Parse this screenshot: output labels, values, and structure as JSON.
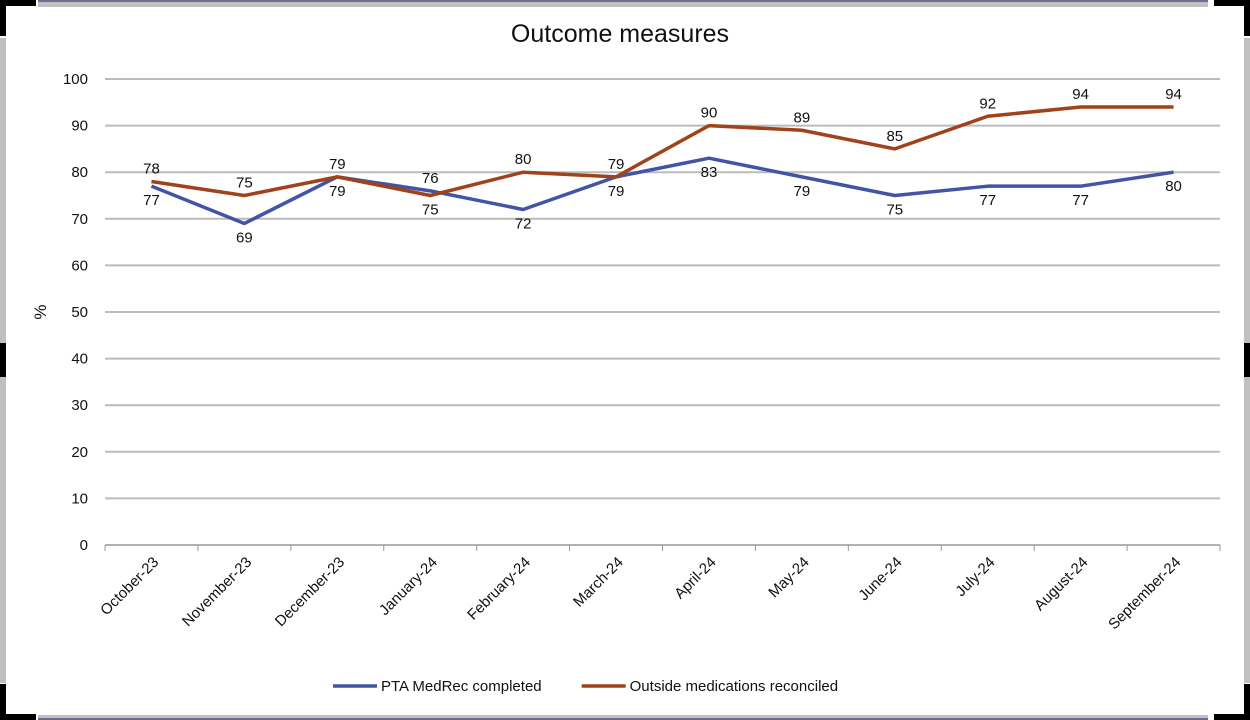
{
  "chart_data": {
    "type": "line",
    "title": "Outcome measures",
    "xlabel": "",
    "ylabel": "%",
    "ylim": [
      0,
      100
    ],
    "yticks": [
      0,
      10,
      20,
      30,
      40,
      50,
      60,
      70,
      80,
      90,
      100
    ],
    "grid": true,
    "legend_position": "bottom",
    "categories": [
      "October-23",
      "November-23",
      "December-23",
      "January-24",
      "February-24",
      "March-24",
      "April-24",
      "May-24",
      "June-24",
      "July-24",
      "August-24",
      "September-24"
    ],
    "series": [
      {
        "name": "PTA MedRec completed",
        "color": "#4154a5",
        "values": [
          77,
          69,
          79,
          76,
          72,
          79,
          83,
          79,
          75,
          77,
          77,
          80
        ]
      },
      {
        "name": "Outside medications reconciled",
        "color": "#a0421a",
        "values": [
          78,
          75,
          79,
          75,
          80,
          79,
          90,
          89,
          85,
          92,
          94,
          94
        ]
      }
    ]
  }
}
